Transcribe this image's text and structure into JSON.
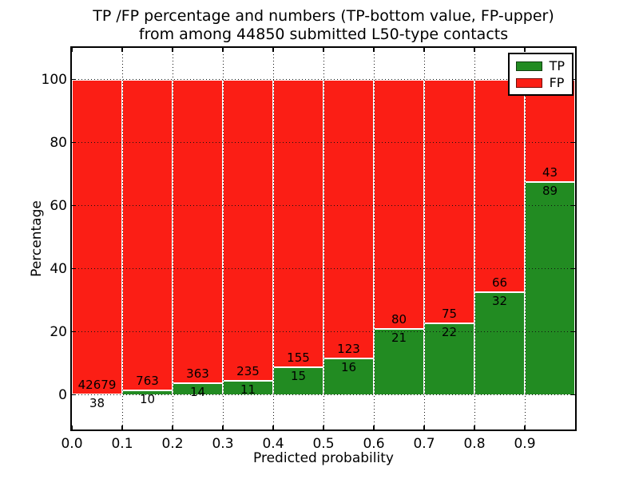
{
  "figure": {
    "title_line1": "TP /FP percentage and numbers (TP-bottom value, FP-upper)",
    "title_line2": "from among 44850 submitted L50-type contacts"
  },
  "chart_data": {
    "type": "bar",
    "stacked": true,
    "normalized_to_percent": true,
    "title": "TP /FP percentage and numbers (TP-bottom value, FP-upper) from among 44850 submitted L50-type contacts",
    "xlabel": "Predicted probability",
    "ylabel": "Percentage",
    "total_contacts": 44850,
    "bin_width": 0.1,
    "bin_starts": [
      0.0,
      0.1,
      0.2,
      0.3,
      0.4,
      0.5,
      0.6,
      0.7,
      0.8,
      0.9
    ],
    "series": [
      {
        "name": "TP",
        "position": "bottom",
        "color": "#228b22",
        "counts": [
          38,
          10,
          14,
          11,
          15,
          16,
          21,
          22,
          32,
          89
        ]
      },
      {
        "name": "FP",
        "position": "top",
        "color": "#fb1e15",
        "counts": [
          42679,
          763,
          363,
          235,
          155,
          123,
          80,
          75,
          66,
          43
        ]
      }
    ],
    "tp_percent_of_bin": [
      0.09,
      1.29,
      3.71,
      4.47,
      8.82,
      11.51,
      20.79,
      22.68,
      32.65,
      67.42
    ],
    "bar_edge_color": "#ffffff",
    "xlim": [
      0.0,
      1.0
    ],
    "ylim": [
      -11,
      110
    ],
    "xtick_labels": [
      "0.0",
      "0.1",
      "0.2",
      "0.3",
      "0.4",
      "0.5",
      "0.6",
      "0.7",
      "0.8",
      "0.9"
    ],
    "ytick_values": [
      0,
      20,
      40,
      60,
      80,
      100
    ],
    "grid": "dotted",
    "legend_position": "upper right",
    "legend": [
      {
        "label": "TP",
        "color": "#228b22"
      },
      {
        "label": "FP",
        "color": "#fb1e15"
      }
    ]
  }
}
